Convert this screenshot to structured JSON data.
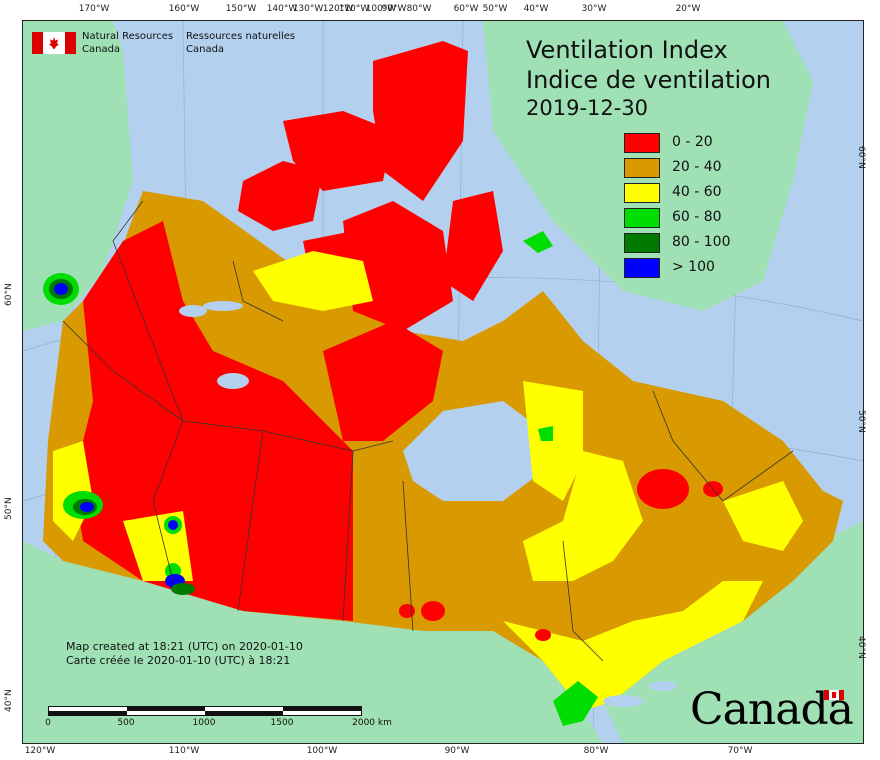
{
  "map": {
    "title_en": "Ventilation Index",
    "title_fr": "Indice de ventilation",
    "date": "2019-12-30",
    "legend": [
      {
        "label": "0 - 20",
        "color": "#ff0000"
      },
      {
        "label": "20 - 40",
        "color": "#d89a00"
      },
      {
        "label": "40 - 60",
        "color": "#ffff00"
      },
      {
        "label": "60 - 80",
        "color": "#00dd00"
      },
      {
        "label": "80 - 100",
        "color": "#007a00"
      },
      {
        "label": "> 100",
        "color": "#0000ff"
      }
    ],
    "colors": {
      "ocean": "#b3d1ef",
      "land_outside": "#9fe0b4",
      "boundary": "#333333",
      "lake": "#b3d1ef"
    },
    "longitude_ticks_top": [
      "170°W",
      "160°W",
      "150°W",
      "140°W",
      "120°W",
      "100°W",
      "80°W",
      "60°W",
      "50°W",
      "40°W",
      "30°W",
      "20°W",
      "130°W",
      "110°W",
      "90°W"
    ],
    "longitude_ticks_bottom": [
      "120°W",
      "110°W",
      "100°W",
      "90°W",
      "80°W",
      "70°W"
    ],
    "latitude_ticks_left": [
      "60°N",
      "50°N",
      "40°N"
    ],
    "latitude_ticks_right": [
      "60°N",
      "50°N",
      "40°N"
    ]
  },
  "agency": {
    "name_en_line1": "Natural Resources",
    "name_en_line2": "Canada",
    "name_fr_line1": "Ressources naturelles",
    "name_fr_line2": "Canada"
  },
  "footer": {
    "created_en": "Map created at 18:21 (UTC) on 2020-01-10",
    "created_fr": "Carte créée le 2020-01-10 (UTC) à 18:21"
  },
  "scale_bar": {
    "labels": [
      "0",
      "500",
      "1000",
      "1500",
      "2000 km"
    ]
  },
  "wordmark": "Canada"
}
